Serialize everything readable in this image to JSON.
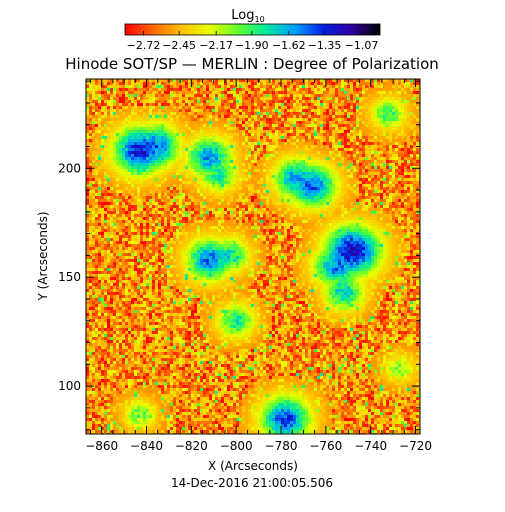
{
  "chart_data": {
    "type": "heatmap",
    "title": "Hinode SOT/SP — MERLIN : Degree of Polarization",
    "xlabel": "X (Arcseconds)",
    "ylabel": "Y (Arcseconds)",
    "footer": "14-Dec-2016 21:00:05.506",
    "xlim": [
      -867,
      -718
    ],
    "ylim": [
      78,
      241
    ],
    "xticks": [
      -860,
      -840,
      -820,
      -800,
      -780,
      -760,
      -740,
      -720
    ],
    "yticks": [
      100,
      150,
      200
    ],
    "colorbar": {
      "title": "Log",
      "title_subscript": "10",
      "ticks": [
        -2.72,
        -2.45,
        -2.17,
        -1.9,
        -1.62,
        -1.35,
        -1.07
      ],
      "tick_labels": [
        "−2.72",
        "−2.45",
        "−2.17",
        "−1.90",
        "−1.62",
        "−1.35",
        "−1.07"
      ],
      "range": [
        -2.86,
        -0.93
      ],
      "colormap": [
        "#ff0000",
        "#ff6a00",
        "#ffc000",
        "#e8ff00",
        "#60ff30",
        "#00e8a0",
        "#00a0ff",
        "#0020e0",
        "#3000a0",
        "#000000"
      ]
    },
    "grid": false,
    "background_level": -2.55,
    "features": [
      {
        "x": -843,
        "y": 208,
        "value": -1.3
      },
      {
        "x": -836,
        "y": 210,
        "value": -1.45
      },
      {
        "x": -812,
        "y": 205,
        "value": -1.55
      },
      {
        "x": -808,
        "y": 197,
        "value": -1.8
      },
      {
        "x": -773,
        "y": 195,
        "value": -1.55
      },
      {
        "x": -766,
        "y": 192,
        "value": -1.45
      },
      {
        "x": -748,
        "y": 162,
        "value": -1.2
      },
      {
        "x": -755,
        "y": 155,
        "value": -1.5
      },
      {
        "x": -752,
        "y": 143,
        "value": -1.7
      },
      {
        "x": -812,
        "y": 158,
        "value": -1.5
      },
      {
        "x": -803,
        "y": 160,
        "value": -1.75
      },
      {
        "x": -800,
        "y": 130,
        "value": -1.8
      },
      {
        "x": -778,
        "y": 85,
        "value": -1.4
      },
      {
        "x": -732,
        "y": 225,
        "value": -1.9
      },
      {
        "x": -843,
        "y": 87,
        "value": -2.0
      },
      {
        "x": -727,
        "y": 108,
        "value": -2.05
      }
    ]
  }
}
